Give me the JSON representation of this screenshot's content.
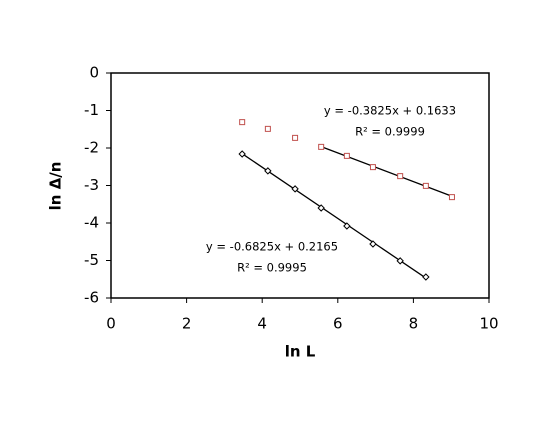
{
  "chart_data": {
    "type": "scatter",
    "x_label": "ln L",
    "y_label": "ln Δ/n",
    "xlim": [
      0,
      10
    ],
    "ylim": [
      -6,
      0
    ],
    "xticks": [
      0,
      2,
      4,
      6,
      8,
      10
    ],
    "yticks": [
      0,
      -1,
      -2,
      -3,
      -4,
      -5,
      -6
    ],
    "series": [
      {
        "color": "#c0504d",
        "marker": "square",
        "x": [
          3.47,
          4.15,
          4.87,
          5.56,
          6.24,
          6.93,
          7.65,
          8.33,
          9.02
        ],
        "values": [
          -1.31,
          -1.49,
          -1.73,
          -1.97,
          -2.21,
          -2.51,
          -2.75,
          -3.01,
          -3.31
        ],
        "fit": {
          "slope": -0.3825,
          "intercept": 0.1633,
          "xlim": [
            5.56,
            9.02
          ],
          "equation": "y = -0.3825x + 0.1633",
          "r2": "R² = 0.9999"
        }
      },
      {
        "color": "#000000",
        "marker": "diamond",
        "x": [
          3.47,
          4.15,
          4.87,
          5.56,
          6.24,
          6.93,
          7.65,
          8.33
        ],
        "values": [
          -2.16,
          -2.61,
          -3.09,
          -3.6,
          -4.08,
          -4.56,
          -5.01,
          -5.44
        ],
        "fit": {
          "slope": -0.6825,
          "intercept": 0.2165,
          "xlim": [
            3.47,
            8.33
          ],
          "equation": "y = -0.6825x + 0.2165",
          "r2": "R² = 0.9995"
        }
      }
    ]
  }
}
